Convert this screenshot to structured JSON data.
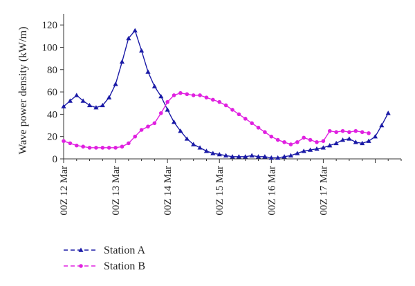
{
  "chart_data": {
    "type": "line",
    "ylabel": "Wave power density (kW/m)",
    "xlabel": "",
    "ylim": [
      0,
      130
    ],
    "yticks": [
      0,
      20,
      40,
      60,
      80,
      100,
      120
    ],
    "x_ticks": [
      "00Z 12 Mar",
      "00Z 13 Mar",
      "00Z 14 Mar",
      "00Z 15 Mar",
      "00Z 16 Mar",
      "00Z 17 Mar"
    ],
    "x_unit": "hours since 00Z 12 Mar",
    "x_range_hours": [
      0,
      156
    ],
    "grid": false,
    "legend_placement": "bottom-left",
    "series": [
      {
        "name": "Station A",
        "color": "#1a1aa6",
        "marker": "triangle",
        "x": [
          0,
          3,
          6,
          9,
          12,
          15,
          18,
          21,
          24,
          27,
          30,
          33,
          36,
          39,
          42,
          45,
          48,
          51,
          54,
          57,
          60,
          63,
          66,
          69,
          72,
          75,
          78,
          81,
          84,
          87,
          90,
          93,
          96,
          99,
          102,
          105,
          108,
          111,
          114,
          117,
          120,
          123,
          126,
          129,
          132,
          135,
          138,
          141,
          144,
          147,
          150,
          153,
          156
        ],
        "values": [
          47,
          52,
          57,
          52,
          48,
          46,
          48,
          55,
          67,
          87,
          108,
          115,
          97,
          78,
          65,
          56,
          44,
          33,
          25,
          18,
          13,
          10,
          7,
          5,
          4,
          3,
          2,
          2,
          2,
          3,
          2,
          2,
          1,
          1,
          2,
          3,
          5,
          7,
          8,
          9,
          10,
          12,
          14,
          17,
          18,
          15,
          14,
          16,
          20,
          30,
          41,
          null,
          null
        ]
      },
      {
        "name": "Station B",
        "color": "#e020e0",
        "marker": "circle",
        "x": [
          0,
          3,
          6,
          9,
          12,
          15,
          18,
          21,
          24,
          27,
          30,
          33,
          36,
          39,
          42,
          45,
          48,
          51,
          54,
          57,
          60,
          63,
          66,
          69,
          72,
          75,
          78,
          81,
          84,
          87,
          90,
          93,
          96,
          99,
          102,
          105,
          108,
          111,
          114,
          117,
          120,
          123,
          126,
          129,
          132,
          135,
          138,
          141,
          144,
          147,
          150,
          153,
          156
        ],
        "values": [
          16,
          14,
          12,
          11,
          10,
          10,
          10,
          10,
          10,
          11,
          14,
          20,
          26,
          29,
          32,
          41,
          51,
          57,
          59,
          58,
          57,
          57,
          55,
          53,
          51,
          48,
          44,
          40,
          36,
          32,
          28,
          24,
          20,
          17,
          15,
          13,
          15,
          19,
          17,
          15,
          16,
          25,
          24,
          25,
          24,
          25,
          24,
          23,
          null,
          null,
          null,
          null,
          null
        ]
      }
    ]
  }
}
